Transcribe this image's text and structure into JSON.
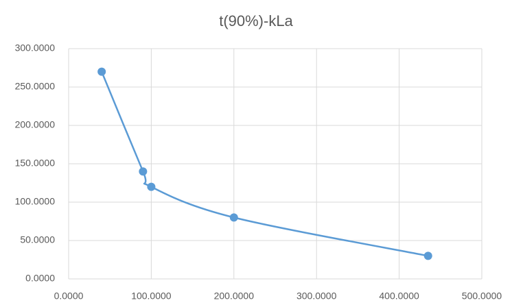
{
  "chart_data": {
    "type": "scatter",
    "title": "t(90%)-kLa",
    "x": [
      40,
      90,
      100,
      200,
      435
    ],
    "series": [
      {
        "color": "#5b9bd5",
        "values": [
          270,
          140,
          120,
          80,
          30
        ]
      }
    ],
    "smooth": true,
    "markers": true,
    "grid": true,
    "xlim": [
      0,
      500
    ],
    "xticks": [
      {
        "value": 0,
        "label": "0.0000"
      },
      {
        "value": 100,
        "label": "100.0000"
      },
      {
        "value": 200,
        "label": "200.0000"
      },
      {
        "value": 300,
        "label": "300.0000"
      },
      {
        "value": 400,
        "label": "400.0000"
      },
      {
        "value": 500,
        "label": "500.0000"
      }
    ],
    "ylim": [
      0,
      300
    ],
    "yticks": [
      {
        "value": 0,
        "label": "0.0000"
      },
      {
        "value": 50,
        "label": "50.0000"
      },
      {
        "value": 100,
        "label": "100.0000"
      },
      {
        "value": 150,
        "label": "150.0000"
      },
      {
        "value": 200,
        "label": "200.0000"
      },
      {
        "value": 250,
        "label": "250.0000"
      },
      {
        "value": 300,
        "label": "300.0000"
      }
    ]
  }
}
